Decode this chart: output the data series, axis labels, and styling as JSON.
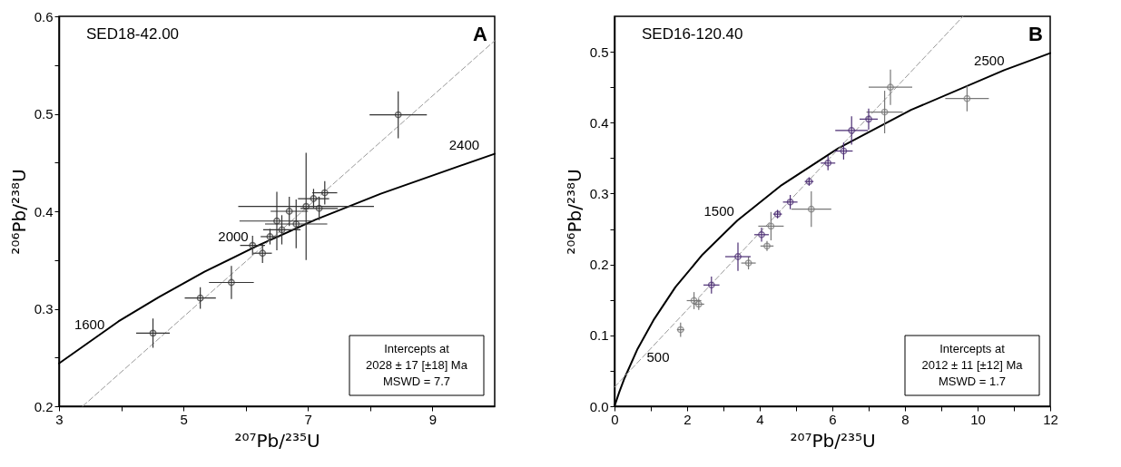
{
  "chart_data": [
    {
      "type": "scatter",
      "xlabel": "²⁰⁷Pb/²³⁵U",
      "ylabel": "²⁰⁶Pb/²³⁸U",
      "xlim": [
        3,
        10
      ],
      "ylim": [
        0.2,
        0.6
      ],
      "xticks": [
        3,
        {
          "value": 4,
          "label": null
        },
        5,
        {
          "value": 6,
          "label": null
        },
        7,
        {
          "value": 8,
          "label": null
        },
        9
      ],
      "yticks": [
        0.2,
        {
          "value": 0.25,
          "label": null
        },
        0.3,
        {
          "value": 0.35,
          "label": null
        },
        0.4,
        {
          "value": 0.45,
          "label": null
        },
        0.5,
        {
          "value": 0.55,
          "label": null
        },
        0.6
      ],
      "grid": false,
      "series": [
        {
          "type": "line",
          "color": "#000000",
          "x": [
            3,
            3.955,
            4.605,
            5.338,
            6.169,
            7.108,
            8.17,
            9.371,
            10
          ],
          "values": [
            0.244,
            0.287,
            0.312,
            0.338,
            0.364,
            0.391,
            0.418,
            0.445,
            0.459
          ]
        },
        {
          "type": "line",
          "color": "#999999",
          "line_style": "dashed",
          "x": [
            3.38,
            10
          ],
          "values": [
            0.2,
            0.575
          ]
        },
        {
          "color": "#333333",
          "marker": "circle",
          "x": [
            4.51,
            5.27,
            5.77,
            8.45,
            6.97,
            6.27,
            6.11,
            6.39,
            6.58,
            6.81,
            7.09,
            7.18,
            7.27,
            6.5,
            6.7
          ],
          "values": [
            0.275,
            0.311,
            0.327,
            0.499,
            0.405,
            0.357,
            0.365,
            0.374,
            0.381,
            0.387,
            0.413,
            0.403,
            0.419,
            0.39,
            0.4
          ],
          "xerrors": [
            0.27,
            0.25,
            0.36,
            0.46,
            1.09,
            0.15,
            0.2,
            0.15,
            0.3,
            0.5,
            0.25,
            0.3,
            0.2,
            0.6,
            0.3
          ],
          "errors": [
            0.015,
            0.011,
            0.017,
            0.024,
            0.055,
            0.01,
            0.01,
            0.008,
            0.015,
            0.025,
            0.01,
            0.012,
            0.012,
            0.03,
            0.015
          ]
        }
      ],
      "annotations": [
        "SED18-42.00",
        "A",
        "Intercepts at",
        "2028 ± 17 [±18] Ma",
        "MSWD = 7.7",
        "1600",
        "2000",
        "2400"
      ]
    },
    {
      "type": "scatter",
      "xlabel": "²⁰⁷Pb/²³⁵U",
      "ylabel": "²⁰⁶Pb/²³⁸U",
      "xlim": [
        0,
        12
      ],
      "ylim": [
        0,
        0.55
      ],
      "xticks": [
        0,
        {
          "value": 1,
          "label": null
        },
        2,
        {
          "value": 3,
          "label": null
        },
        4,
        {
          "value": 5,
          "label": null
        },
        6,
        {
          "value": 7,
          "label": null
        },
        8,
        {
          "value": 9,
          "label": null
        },
        10,
        {
          "value": 11,
          "label": null
        },
        12
      ],
      "yticks": [
        {
          "value": 0,
          "label": "0.0"
        },
        {
          "value": 0.05,
          "label": null
        },
        0.1,
        {
          "value": 0.15,
          "label": null
        },
        0.2,
        {
          "value": 0.25,
          "label": null
        },
        0.3,
        {
          "value": 0.35,
          "label": null
        },
        0.4,
        {
          "value": 0.45,
          "label": null
        },
        0.5
      ],
      "grid": false,
      "series": [
        {
          "type": "line",
          "color": "#000000",
          "x": [
            0,
            0.131,
            0.279,
            0.636,
            1.093,
            1.677,
            2.425,
            3.381,
            4.605,
            6.169,
            8.17,
            10.731,
            12
          ],
          "values": [
            0,
            0.02,
            0.04,
            0.081,
            0.123,
            0.168,
            0.214,
            0.262,
            0.312,
            0.364,
            0.418,
            0.474,
            0.498
          ]
        },
        {
          "type": "line",
          "color": "#999999",
          "line_style": "dashed",
          "x": [
            0,
            9.6
          ],
          "values": [
            0.027,
            0.55
          ]
        },
        {
          "color": "#777777",
          "marker": "circle",
          "x": [
            7.6,
            7.44,
            9.71,
            5.42,
            4.31,
            4.2,
            3.69,
            2.19,
            2.32,
            1.82
          ],
          "values": [
            0.45,
            0.415,
            0.434,
            0.278,
            0.254,
            0.226,
            0.202,
            0.149,
            0.144,
            0.108
          ],
          "xerrors": [
            0.6,
            0.5,
            0.6,
            0.55,
            0.35,
            0.18,
            0.2,
            0.2,
            0.15,
            0.1
          ],
          "errors": [
            0.025,
            0.03,
            0.018,
            0.025,
            0.02,
            0.007,
            0.009,
            0.012,
            0.008,
            0.01
          ]
        },
        {
          "color": "#4b2d73",
          "marker": "circle",
          "x": [
            6.53,
            7.0,
            6.31,
            5.88,
            5.36,
            4.84,
            4.49,
            4.05,
            3.4,
            2.67
          ],
          "values": [
            0.389,
            0.405,
            0.36,
            0.343,
            0.317,
            0.288,
            0.271,
            0.242,
            0.211,
            0.171
          ],
          "xerrors": [
            0.45,
            0.25,
            0.25,
            0.2,
            0.12,
            0.2,
            0.12,
            0.2,
            0.35,
            0.22
          ],
          "errors": [
            0.02,
            0.015,
            0.012,
            0.01,
            0.006,
            0.01,
            0.006,
            0.01,
            0.02,
            0.012
          ]
        }
      ],
      "annotations": [
        "SED16-120.40",
        "B",
        "Intercepts at",
        "2012 ± 11 [±12] Ma",
        "MSWD = 1.7",
        "1500",
        "500",
        "2500"
      ]
    }
  ]
}
